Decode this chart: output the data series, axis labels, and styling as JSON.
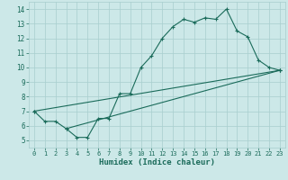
{
  "line1_x": [
    0,
    1,
    2,
    3,
    4,
    5,
    6,
    7,
    8,
    9,
    10,
    11,
    12,
    13,
    14,
    15,
    16,
    17,
    18,
    19,
    20,
    21,
    22,
    23
  ],
  "line1_y": [
    7.0,
    6.3,
    6.3,
    5.8,
    5.2,
    5.2,
    6.5,
    6.5,
    8.2,
    8.2,
    10.0,
    10.8,
    12.0,
    12.8,
    13.3,
    13.1,
    13.4,
    13.3,
    14.0,
    12.5,
    12.1,
    10.5,
    10.0,
    9.8
  ],
  "line2_x": [
    0,
    23
  ],
  "line2_y": [
    7.0,
    9.8
  ],
  "line3_x": [
    3,
    23
  ],
  "line3_y": [
    5.8,
    9.8
  ],
  "line_color": "#1a6b5a",
  "bg_color": "#cce8e8",
  "grid_color": "#a8cece",
  "xlabel": "Humidex (Indice chaleur)",
  "xlim": [
    -0.5,
    23.5
  ],
  "ylim": [
    4.5,
    14.5
  ],
  "yticks": [
    5,
    6,
    7,
    8,
    9,
    10,
    11,
    12,
    13,
    14
  ],
  "xticks": [
    0,
    1,
    2,
    3,
    4,
    5,
    6,
    7,
    8,
    9,
    10,
    11,
    12,
    13,
    14,
    15,
    16,
    17,
    18,
    19,
    20,
    21,
    22,
    23
  ],
  "tick_color": "#1a6b5a",
  "tick_fontsize": 5.0,
  "xlabel_fontsize": 6.5
}
